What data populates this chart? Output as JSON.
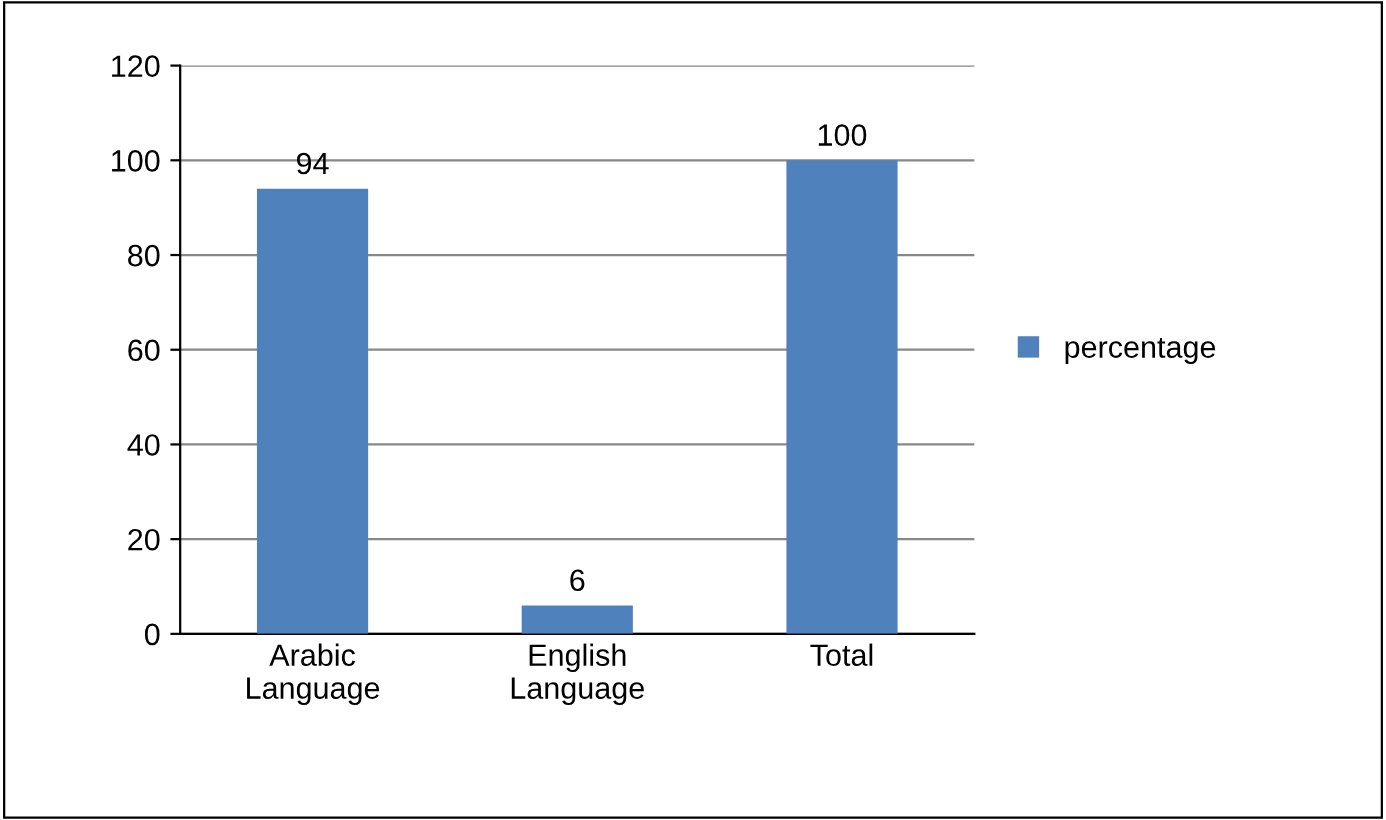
{
  "chart_data": {
    "type": "bar",
    "categories": [
      "Arabic\nLanguage",
      "English\nLanguage",
      "Total"
    ],
    "series": [
      {
        "name": "percentage",
        "color": "#4f81bd",
        "values": [
          94,
          6,
          100
        ]
      }
    ],
    "ylim": [
      0,
      120
    ],
    "yticks": [
      0,
      20,
      40,
      60,
      80,
      100,
      120
    ],
    "grid": "y",
    "legend": "right",
    "data_labels": true
  }
}
